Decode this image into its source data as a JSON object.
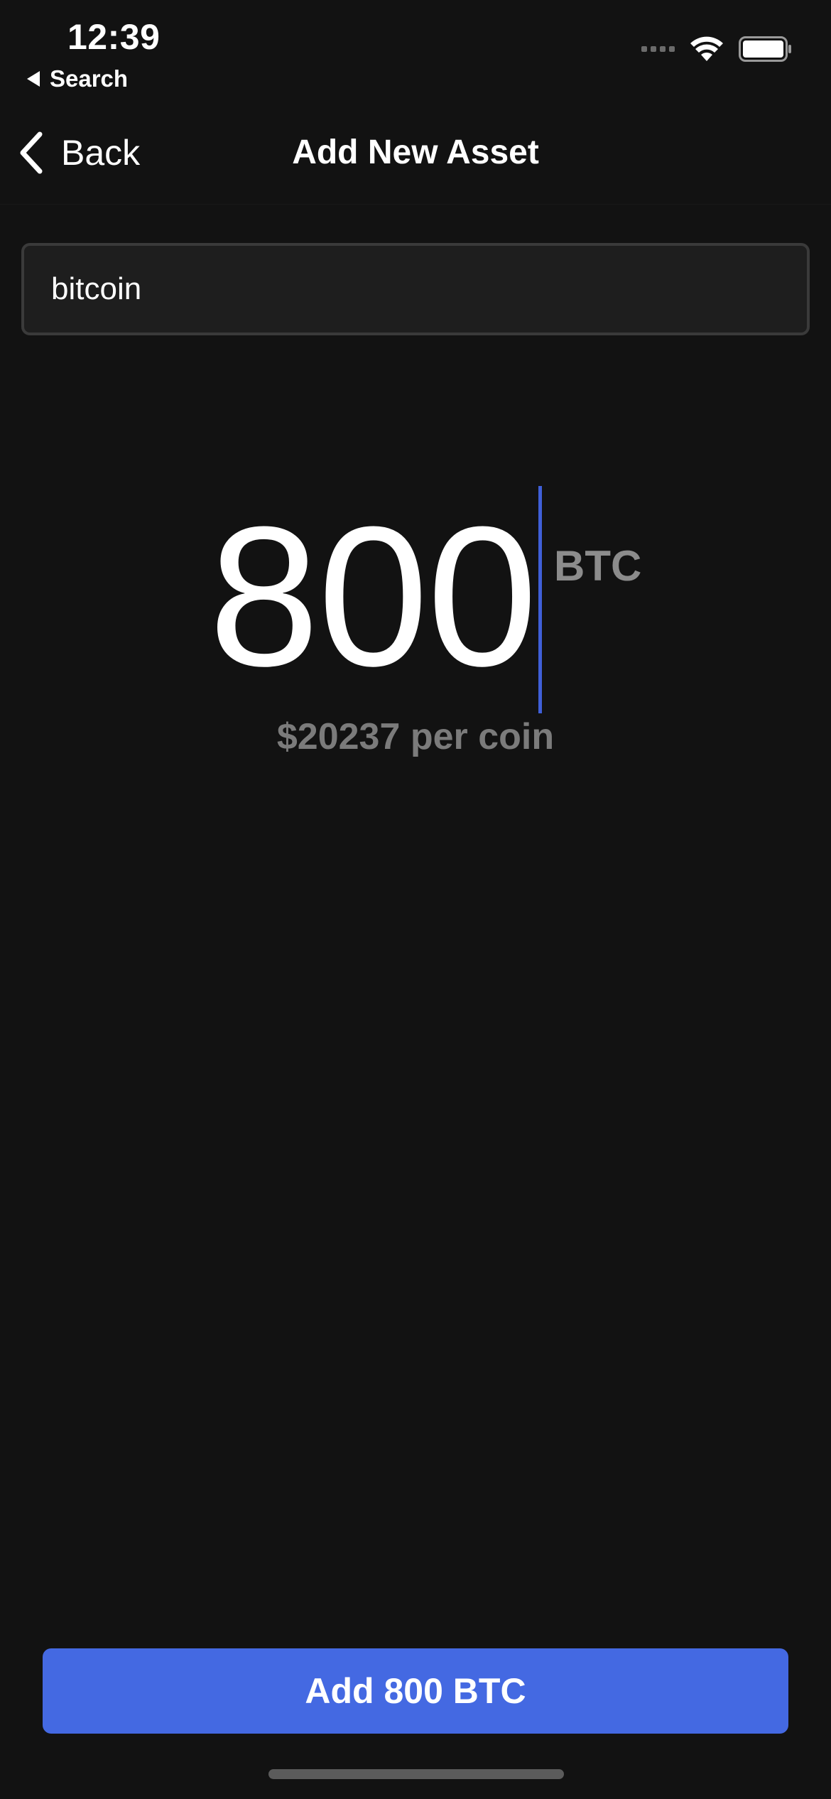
{
  "status_bar": {
    "time": "12:39",
    "back_app_label": "Search"
  },
  "nav": {
    "back_label": "Back",
    "title": "Add New Asset"
  },
  "search": {
    "value": "bitcoin"
  },
  "amount": {
    "value": "800",
    "unit": "BTC",
    "price_per_coin": "$20237 per coin"
  },
  "action": {
    "add_label": "Add 800 BTC"
  },
  "colors": {
    "background": "#121212",
    "accent": "#4469e2",
    "cursor": "#3f5fd8",
    "muted_text": "#8c8c8c"
  }
}
